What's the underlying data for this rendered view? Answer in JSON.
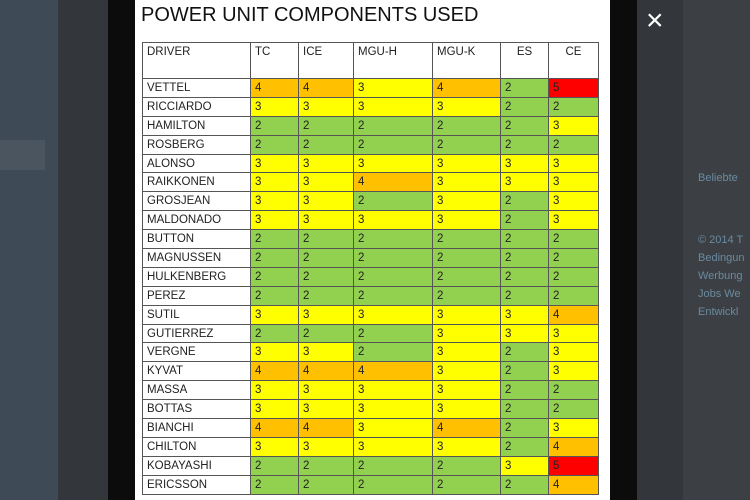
{
  "lightbox": {
    "title": "POWER UNIT COMPONENTS USED",
    "close": "×"
  },
  "table": {
    "header": [
      "DRIVER",
      "TC",
      "ICE",
      "MGU-H",
      "MGU-K",
      "ES",
      "CE"
    ],
    "cell_colors": {
      "2": "#92d050",
      "3": "#ffff00",
      "4": "#ffc000",
      "5": "#ff0000"
    },
    "rows": [
      [
        "VETTEL",
        4,
        4,
        3,
        4,
        2,
        5
      ],
      [
        "RICCIARDO",
        3,
        3,
        3,
        3,
        2,
        2
      ],
      [
        "HAMILTON",
        2,
        2,
        2,
        2,
        2,
        3
      ],
      [
        "ROSBERG",
        2,
        2,
        2,
        2,
        2,
        2
      ],
      [
        "ALONSO",
        3,
        3,
        3,
        3,
        3,
        3
      ],
      [
        "RAIKKONEN",
        3,
        3,
        4,
        3,
        3,
        3
      ],
      [
        "GROSJEAN",
        3,
        3,
        2,
        3,
        2,
        3
      ],
      [
        "MALDONADO",
        3,
        3,
        3,
        3,
        2,
        3
      ],
      [
        "BUTTON",
        2,
        2,
        2,
        2,
        2,
        2
      ],
      [
        "MAGNUSSEN",
        2,
        2,
        2,
        2,
        2,
        2
      ],
      [
        "HULKENBERG",
        2,
        2,
        2,
        2,
        2,
        2
      ],
      [
        "PEREZ",
        2,
        2,
        2,
        2,
        2,
        2
      ],
      [
        "SUTIL",
        3,
        3,
        3,
        3,
        3,
        4
      ],
      [
        "GUTIERREZ",
        2,
        2,
        2,
        3,
        3,
        3
      ],
      [
        "VERGNE",
        3,
        3,
        2,
        3,
        2,
        3
      ],
      [
        "KYVAT",
        4,
        4,
        4,
        3,
        2,
        3
      ],
      [
        "MASSA",
        3,
        3,
        3,
        3,
        2,
        2
      ],
      [
        "BOTTAS",
        3,
        3,
        3,
        3,
        2,
        2
      ],
      [
        "BIANCHI",
        4,
        4,
        3,
        4,
        2,
        3
      ],
      [
        "CHILTON",
        3,
        3,
        3,
        3,
        2,
        4
      ],
      [
        "KOBAYASHI",
        2,
        2,
        2,
        2,
        3,
        5
      ],
      [
        "ERICSSON",
        2,
        2,
        2,
        2,
        2,
        4
      ]
    ]
  },
  "sidebar": [
    "Beliebte",
    "© 2014 T",
    "Bedingun",
    "Werbung",
    "Jobs  We",
    "Entwickl"
  ]
}
